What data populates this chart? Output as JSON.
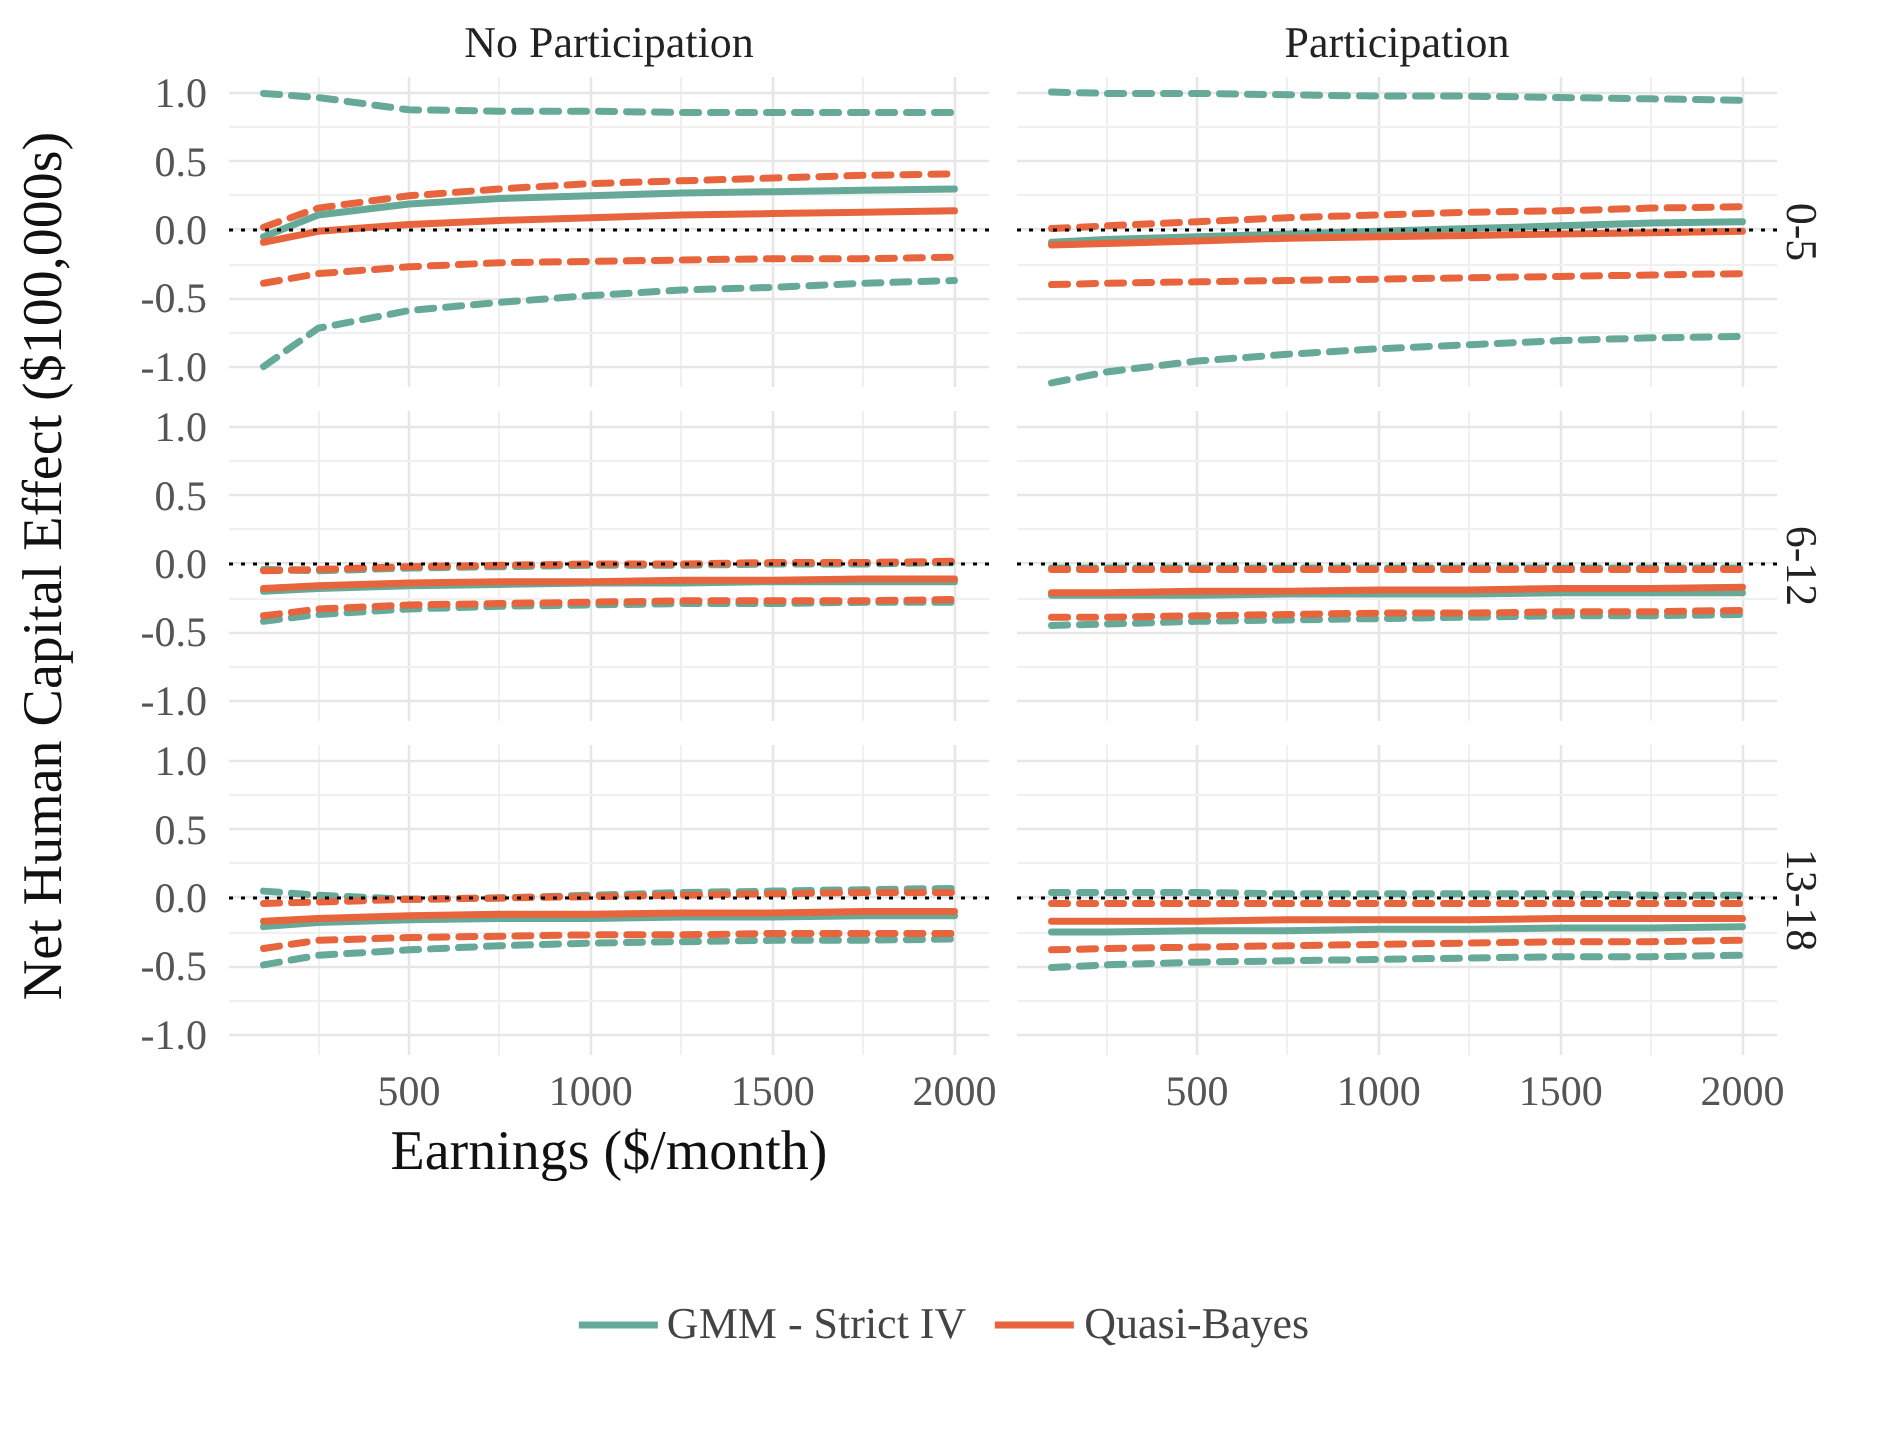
{
  "chart_data": [
    {
      "type": "line",
      "title": "No Participation",
      "x": [
        100,
        250,
        500,
        750,
        1000,
        1250,
        1500,
        1750,
        2000
      ],
      "xlim": [
        5,
        2095
      ],
      "xticks": [
        500,
        1000,
        1500,
        2000
      ],
      "ylim": [
        -1.15,
        1.12
      ],
      "yticks": [
        {
          "value": -1,
          "label": "-1.0"
        },
        {
          "value": -0.5,
          "label": "-0.5"
        },
        {
          "value": 0,
          "label": "0.0"
        },
        {
          "value": 0.5,
          "label": "0.5"
        },
        {
          "value": 1,
          "label": "1.0"
        }
      ],
      "grid": true,
      "tick_labels": "y",
      "ref_lines": [
        {
          "axis": "y",
          "value": 0,
          "color": "#000000",
          "line_style": "dotted"
        }
      ],
      "series": [
        {
          "color": "#66a999",
          "line_style": "dashed",
          "values": [
            1.0,
            0.97,
            0.88,
            0.87,
            0.87,
            0.86,
            0.86,
            0.86,
            0.86
          ]
        },
        {
          "color": "#66a999",
          "line_style": "dashed",
          "values": [
            -1.0,
            -0.72,
            -0.59,
            -0.53,
            -0.48,
            -0.44,
            -0.42,
            -0.39,
            -0.37
          ]
        },
        {
          "color": "#e8643c",
          "line_style": "dashed",
          "values": [
            0.02,
            0.16,
            0.25,
            0.3,
            0.34,
            0.36,
            0.38,
            0.4,
            0.41
          ]
        },
        {
          "color": "#e8643c",
          "line_style": "dashed",
          "values": [
            -0.39,
            -0.32,
            -0.27,
            -0.24,
            -0.23,
            -0.22,
            -0.21,
            -0.21,
            -0.2
          ]
        },
        {
          "color": "#66a999",
          "line_style": "solid",
          "values": [
            -0.05,
            0.11,
            0.19,
            0.23,
            0.25,
            0.27,
            0.28,
            0.29,
            0.3
          ]
        },
        {
          "color": "#e8643c",
          "line_style": "solid",
          "values": [
            -0.09,
            -0.01,
            0.04,
            0.07,
            0.09,
            0.11,
            0.12,
            0.13,
            0.14
          ]
        }
      ]
    },
    {
      "type": "line",
      "title": "Participation",
      "y2label": "0-5",
      "x": [
        100,
        250,
        500,
        750,
        1000,
        1250,
        1500,
        1750,
        2000
      ],
      "xlim": [
        5,
        2095
      ],
      "xticks": [
        500,
        1000,
        1500,
        2000
      ],
      "ylim": [
        -1.15,
        1.12
      ],
      "yticks": [
        -1,
        -0.5,
        0,
        0.5,
        1
      ],
      "grid": true,
      "tick_labels": false,
      "ref_lines": [
        {
          "axis": "y",
          "value": 0,
          "color": "#000000",
          "line_style": "dotted"
        }
      ],
      "series": [
        {
          "color": "#66a999",
          "line_style": "dashed",
          "values": [
            1.01,
            1.0,
            1.0,
            0.99,
            0.98,
            0.98,
            0.97,
            0.96,
            0.95
          ]
        },
        {
          "color": "#66a999",
          "line_style": "dashed",
          "values": [
            -1.12,
            -1.04,
            -0.96,
            -0.91,
            -0.87,
            -0.84,
            -0.81,
            -0.79,
            -0.78
          ]
        },
        {
          "color": "#e8643c",
          "line_style": "dashed",
          "values": [
            0.01,
            0.03,
            0.06,
            0.09,
            0.11,
            0.13,
            0.14,
            0.16,
            0.17
          ]
        },
        {
          "color": "#e8643c",
          "line_style": "dashed",
          "values": [
            -0.4,
            -0.39,
            -0.38,
            -0.37,
            -0.36,
            -0.35,
            -0.34,
            -0.33,
            -0.32
          ]
        },
        {
          "color": "#66a999",
          "line_style": "solid",
          "values": [
            -0.09,
            -0.07,
            -0.05,
            -0.03,
            -0.01,
            0.01,
            0.03,
            0.05,
            0.06
          ]
        },
        {
          "color": "#e8643c",
          "line_style": "solid",
          "values": [
            -0.11,
            -0.1,
            -0.08,
            -0.06,
            -0.05,
            -0.04,
            -0.03,
            -0.02,
            -0.01
          ]
        }
      ]
    },
    {
      "type": "line",
      "ylabel": "Net Human Capital Effect ($100,000s)",
      "x": [
        100,
        250,
        500,
        750,
        1000,
        1250,
        1500,
        1750,
        2000
      ],
      "xlim": [
        5,
        2095
      ],
      "xticks": [
        500,
        1000,
        1500,
        2000
      ],
      "ylim": [
        -1.15,
        1.12
      ],
      "yticks": [
        {
          "value": -1,
          "label": "-1.0"
        },
        {
          "value": -0.5,
          "label": "-0.5"
        },
        {
          "value": 0,
          "label": "0.0"
        },
        {
          "value": 0.5,
          "label": "0.5"
        },
        {
          "value": 1,
          "label": "1.0"
        }
      ],
      "grid": true,
      "tick_labels": "y",
      "ref_lines": [
        {
          "axis": "y",
          "value": 0,
          "color": "#000000",
          "line_style": "dotted"
        }
      ],
      "series": [
        {
          "color": "#66a999",
          "line_style": "dashed",
          "values": [
            -0.04,
            -0.05,
            -0.03,
            -0.02,
            -0.01,
            -0.01,
            0.0,
            0.0,
            0.01
          ]
        },
        {
          "color": "#66a999",
          "line_style": "dashed",
          "values": [
            -0.42,
            -0.37,
            -0.33,
            -0.31,
            -0.3,
            -0.29,
            -0.29,
            -0.28,
            -0.28
          ]
        },
        {
          "color": "#e8643c",
          "line_style": "dashed",
          "values": [
            -0.05,
            -0.04,
            -0.02,
            -0.01,
            0.0,
            0.0,
            0.01,
            0.01,
            0.02
          ]
        },
        {
          "color": "#e8643c",
          "line_style": "dashed",
          "values": [
            -0.38,
            -0.33,
            -0.3,
            -0.29,
            -0.28,
            -0.27,
            -0.27,
            -0.27,
            -0.26
          ]
        },
        {
          "color": "#66a999",
          "line_style": "solid",
          "values": [
            -0.2,
            -0.18,
            -0.16,
            -0.15,
            -0.14,
            -0.14,
            -0.13,
            -0.13,
            -0.13
          ]
        },
        {
          "color": "#e8643c",
          "line_style": "solid",
          "values": [
            -0.18,
            -0.16,
            -0.14,
            -0.13,
            -0.13,
            -0.12,
            -0.12,
            -0.11,
            -0.11
          ]
        }
      ]
    },
    {
      "type": "line",
      "y2label": "6-12",
      "x": [
        100,
        250,
        500,
        750,
        1000,
        1250,
        1500,
        1750,
        2000
      ],
      "xlim": [
        5,
        2095
      ],
      "xticks": [
        500,
        1000,
        1500,
        2000
      ],
      "ylim": [
        -1.15,
        1.12
      ],
      "yticks": [
        -1,
        -0.5,
        0,
        0.5,
        1
      ],
      "grid": true,
      "tick_labels": false,
      "ref_lines": [
        {
          "axis": "y",
          "value": 0,
          "color": "#000000",
          "line_style": "dotted"
        }
      ],
      "series": [
        {
          "color": "#66a999",
          "line_style": "dashed",
          "values": [
            -0.03,
            -0.03,
            -0.03,
            -0.03,
            -0.03,
            -0.03,
            -0.03,
            -0.03,
            -0.03
          ]
        },
        {
          "color": "#66a999",
          "line_style": "dashed",
          "values": [
            -0.45,
            -0.44,
            -0.42,
            -0.41,
            -0.4,
            -0.39,
            -0.38,
            -0.38,
            -0.37
          ]
        },
        {
          "color": "#e8643c",
          "line_style": "dashed",
          "values": [
            -0.04,
            -0.04,
            -0.04,
            -0.04,
            -0.04,
            -0.04,
            -0.04,
            -0.04,
            -0.04
          ]
        },
        {
          "color": "#e8643c",
          "line_style": "dashed",
          "values": [
            -0.39,
            -0.39,
            -0.38,
            -0.37,
            -0.36,
            -0.36,
            -0.35,
            -0.35,
            -0.34
          ]
        },
        {
          "color": "#66a999",
          "line_style": "solid",
          "values": [
            -0.23,
            -0.23,
            -0.23,
            -0.22,
            -0.22,
            -0.22,
            -0.21,
            -0.21,
            -0.21
          ]
        },
        {
          "color": "#e8643c",
          "line_style": "solid",
          "values": [
            -0.21,
            -0.21,
            -0.2,
            -0.2,
            -0.19,
            -0.19,
            -0.18,
            -0.18,
            -0.17
          ]
        }
      ]
    },
    {
      "type": "line",
      "xlabel": "Earnings ($/month)",
      "x": [
        100,
        250,
        500,
        750,
        1000,
        1250,
        1500,
        1750,
        2000
      ],
      "xlim": [
        5,
        2095
      ],
      "xticks": [
        500,
        1000,
        1500,
        2000
      ],
      "ylim": [
        -1.15,
        1.12
      ],
      "yticks": [
        {
          "value": -1,
          "label": "-1.0"
        },
        {
          "value": -0.5,
          "label": "-0.5"
        },
        {
          "value": 0,
          "label": "0.0"
        },
        {
          "value": 0.5,
          "label": "0.5"
        },
        {
          "value": 1,
          "label": "1.0"
        }
      ],
      "grid": true,
      "legend": "bottom",
      "ref_lines": [
        {
          "axis": "y",
          "value": 0,
          "color": "#000000",
          "line_style": "dotted"
        }
      ],
      "series": [
        {
          "color": "#66a999",
          "line_style": "dashed",
          "values": [
            0.05,
            0.02,
            -0.01,
            0.0,
            0.02,
            0.04,
            0.05,
            0.06,
            0.07
          ]
        },
        {
          "color": "#66a999",
          "line_style": "dashed",
          "values": [
            -0.49,
            -0.42,
            -0.38,
            -0.35,
            -0.33,
            -0.32,
            -0.31,
            -0.31,
            -0.3
          ]
        },
        {
          "color": "#e8643c",
          "line_style": "dashed",
          "values": [
            -0.04,
            -0.03,
            -0.01,
            0.0,
            0.01,
            0.02,
            0.03,
            0.04,
            0.04
          ]
        },
        {
          "color": "#e8643c",
          "line_style": "dashed",
          "values": [
            -0.37,
            -0.31,
            -0.29,
            -0.28,
            -0.27,
            -0.27,
            -0.26,
            -0.26,
            -0.26
          ]
        },
        {
          "name": "GMM - Strict IV",
          "color": "#66a999",
          "line_style": "solid",
          "values": [
            -0.21,
            -0.18,
            -0.16,
            -0.15,
            -0.15,
            -0.14,
            -0.14,
            -0.13,
            -0.13
          ]
        },
        {
          "name": "Quasi-Bayes",
          "color": "#e8643c",
          "line_style": "solid",
          "values": [
            -0.17,
            -0.15,
            -0.13,
            -0.12,
            -0.12,
            -0.11,
            -0.11,
            -0.1,
            -0.1
          ]
        }
      ]
    },
    {
      "type": "line",
      "y2label": "13-18",
      "x": [
        100,
        250,
        500,
        750,
        1000,
        1250,
        1500,
        1750,
        2000
      ],
      "xlim": [
        5,
        2095
      ],
      "xticks": [
        500,
        1000,
        1500,
        2000
      ],
      "ylim": [
        -1.15,
        1.12
      ],
      "yticks": [
        -1,
        -0.5,
        0,
        0.5,
        1
      ],
      "grid": true,
      "tick_labels": "x",
      "ref_lines": [
        {
          "axis": "y",
          "value": 0,
          "color": "#000000",
          "line_style": "dotted"
        }
      ],
      "series": [
        {
          "color": "#66a999",
          "line_style": "dashed",
          "values": [
            0.04,
            0.04,
            0.04,
            0.03,
            0.03,
            0.03,
            0.03,
            0.02,
            0.02
          ]
        },
        {
          "color": "#66a999",
          "line_style": "dashed",
          "values": [
            -0.51,
            -0.49,
            -0.47,
            -0.46,
            -0.45,
            -0.44,
            -0.43,
            -0.43,
            -0.42
          ]
        },
        {
          "color": "#e8643c",
          "line_style": "dashed",
          "values": [
            -0.04,
            -0.04,
            -0.04,
            -0.04,
            -0.04,
            -0.04,
            -0.04,
            -0.04,
            -0.04
          ]
        },
        {
          "color": "#e8643c",
          "line_style": "dashed",
          "values": [
            -0.38,
            -0.37,
            -0.36,
            -0.35,
            -0.34,
            -0.33,
            -0.32,
            -0.32,
            -0.31
          ]
        },
        {
          "color": "#66a999",
          "line_style": "solid",
          "values": [
            -0.25,
            -0.25,
            -0.24,
            -0.24,
            -0.23,
            -0.23,
            -0.22,
            -0.22,
            -0.21
          ]
        },
        {
          "color": "#e8643c",
          "line_style": "solid",
          "values": [
            -0.17,
            -0.17,
            -0.17,
            -0.16,
            -0.16,
            -0.16,
            -0.15,
            -0.15,
            -0.15
          ]
        }
      ]
    }
  ]
}
